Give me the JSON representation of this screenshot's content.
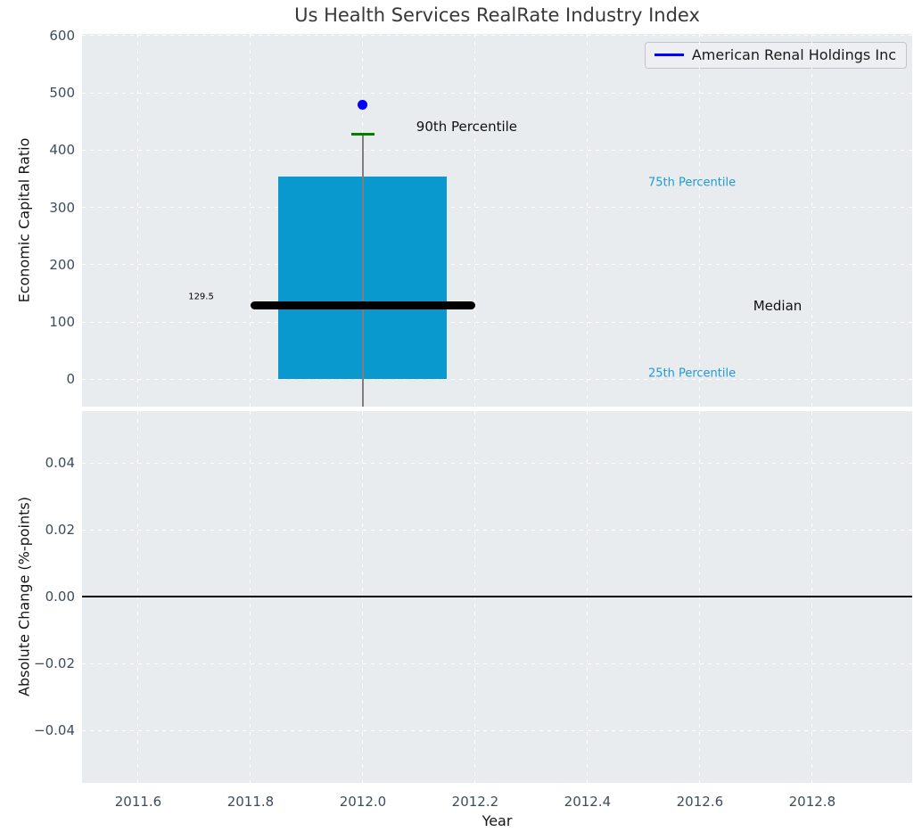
{
  "title": "Us Health Services RealRate Industry Index",
  "axes": {
    "top_ylabel": "Economic Capital Ratio",
    "bottom_ylabel": "Absolute Change (%-points)",
    "xlabel": "Year"
  },
  "legend": {
    "label": "American Renal Holdings Inc",
    "line_color": "#0000ff",
    "position": "upper right"
  },
  "colors": {
    "plot_background": "#e9ecef",
    "grid": "#ffffff",
    "box_fill": "#0a99cf",
    "median_line": "#000000",
    "percentile_text": "#1f9bd1",
    "company_point": "#0000ff",
    "p90_tick": "#008000",
    "whisker_line": "#7f7f7f",
    "tick_label": "#3d4c5e",
    "zero_line": "#000000"
  },
  "chart_data": {
    "type": "box",
    "title": "Us Health Services RealRate Industry Index",
    "xlabel": "Year",
    "grid": {
      "on": true,
      "style": "dashed",
      "color": "#ffffff"
    },
    "xlim": [
      2011.5,
      2012.978
    ],
    "xticks": {
      "values": [
        2011.6,
        2011.8,
        2012.0,
        2012.2,
        2012.4,
        2012.6,
        2012.8
      ],
      "labels": [
        "2011.6",
        "2011.8",
        "2012.0",
        "2012.2",
        "2012.4",
        "2012.6",
        "2012.8"
      ]
    },
    "top_panel": {
      "ylabel": "Economic Capital Ratio",
      "ylim": [
        -47.5,
        603
      ],
      "yticks": {
        "values": [
          0,
          100,
          200,
          300,
          400,
          500,
          600
        ],
        "labels": [
          "0",
          "100",
          "200",
          "300",
          "400",
          "500",
          "600"
        ]
      },
      "box": {
        "x": 2012.0,
        "x_left": 2011.85,
        "x_right": 2012.15,
        "q25": 0,
        "q75": 354,
        "median": 129.5,
        "p90": 428,
        "whisker_extends_below_axis": true,
        "fill_color": "#0a99cf"
      },
      "median_line": {
        "x_from": 2011.8,
        "x_to": 2012.2,
        "y": 129.5,
        "color": "#000000",
        "label": "129.5"
      },
      "company_point": {
        "name": "American Renal Holdings Inc",
        "x": 2012.0,
        "y": 480,
        "color": "#0000ff"
      },
      "annotations": [
        {
          "name": "median-value-label",
          "text": "129.5",
          "x": 2011.712,
          "y": 144,
          "color": "#000000",
          "size": 10,
          "align": "center"
        },
        {
          "name": "p90-label",
          "text": "90th Percentile",
          "x": 2012.095,
          "y": 441,
          "color": "#111111",
          "size": 15,
          "align": "left"
        },
        {
          "name": "p75-label",
          "text": "75th Percentile",
          "x": 2012.508,
          "y": 343,
          "color": "#1f9bd1",
          "size": 13,
          "align": "left"
        },
        {
          "name": "median-label",
          "text": "Median",
          "x": 2012.695,
          "y": 129,
          "color": "#111111",
          "size": 15,
          "align": "left"
        },
        {
          "name": "p25-label",
          "text": "25th Percentile",
          "x": 2012.508,
          "y": 10,
          "color": "#1f9bd1",
          "size": 13,
          "align": "left"
        }
      ]
    },
    "bottom_panel": {
      "ylabel": "Absolute Change (%-points)",
      "ylim": [
        -0.0557,
        0.0555
      ],
      "yticks": {
        "values": [
          0.04,
          0.02,
          0.0,
          -0.02,
          -0.04
        ],
        "labels": [
          "0.04",
          "0.02",
          "0.00",
          "−0.02",
          "−0.04"
        ]
      },
      "zero_line": {
        "y": 0.0,
        "color": "#000000"
      },
      "series": []
    }
  }
}
